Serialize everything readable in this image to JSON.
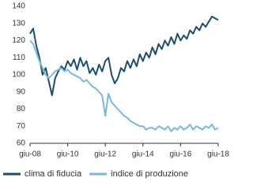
{
  "chart_data": {
    "type": "line",
    "categories": [
      "giu-08",
      null,
      null,
      null,
      null,
      null,
      null,
      null,
      null,
      null,
      null,
      null,
      "giu-10",
      null,
      null,
      null,
      null,
      null,
      null,
      null,
      null,
      null,
      null,
      null,
      "giu-12",
      null,
      null,
      null,
      null,
      null,
      null,
      null,
      null,
      null,
      null,
      null,
      "giu-14",
      null,
      null,
      null,
      null,
      null,
      null,
      null,
      null,
      null,
      null,
      null,
      "giu-16",
      null,
      null,
      null,
      null,
      null,
      null,
      null,
      null,
      null,
      null,
      null,
      "giu-18"
    ],
    "series": [
      {
        "name": "clima di fiducia",
        "color": "#1f4e6b",
        "values": [
          124,
          127,
          117,
          110,
          100,
          104,
          96,
          88,
          98,
          102,
          105,
          103,
          108,
          105,
          109,
          103,
          110,
          105,
          108,
          101,
          104,
          100,
          106,
          102,
          108,
          110,
          100,
          95,
          98,
          104,
          102,
          108,
          104,
          109,
          105,
          112,
          108,
          113,
          110,
          116,
          112,
          118,
          115,
          120,
          117,
          122,
          118,
          124,
          120,
          123,
          121,
          126,
          124,
          128,
          126,
          130,
          128,
          131,
          134,
          133,
          132
        ]
      },
      {
        "name": "indice di produzione",
        "color": "#7ab8d6",
        "values": [
          120,
          118,
          113,
          108,
          104,
          100,
          98,
          100,
          102,
          103,
          104,
          102,
          103,
          101,
          100,
          99,
          98,
          96,
          97,
          95,
          93,
          92,
          90,
          88,
          76,
          89,
          84,
          82,
          80,
          78,
          76,
          75,
          73,
          72,
          71,
          70,
          70,
          68,
          69,
          69,
          68,
          70,
          69,
          68,
          70,
          67,
          69,
          68,
          70,
          68,
          69,
          71,
          68,
          70,
          69,
          68,
          70,
          69,
          71,
          68,
          69
        ]
      }
    ],
    "ylim": [
      60,
      140
    ],
    "yticks": [
      60,
      70,
      80,
      90,
      100,
      110,
      120,
      130,
      140
    ]
  }
}
